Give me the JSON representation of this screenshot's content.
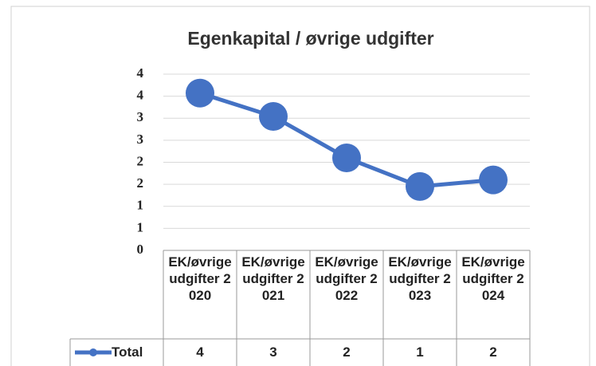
{
  "chart_data": {
    "type": "line",
    "title": "Egenkapital / øvrige udgifter",
    "categories": [
      "EK/øvrige udgifter 2020",
      "EK/øvrige udgifter 2021",
      "EK/øvrige udgifter 2022",
      "EK/øvrige udgifter 2023",
      "EK/øvrige udgifter 2024"
    ],
    "series": [
      {
        "name": "Total",
        "color": "#4472c4",
        "values": [
          3.57,
          3.04,
          2.1,
          1.45,
          1.6
        ],
        "value_labels": [
          "4",
          "3",
          "2",
          "1",
          "2"
        ]
      }
    ],
    "ylim": [
      0,
      4
    ],
    "yticks": [
      0,
      {
        "value": 0.5,
        "label": "1"
      },
      1,
      {
        "value": 1.5,
        "label": "2"
      },
      2,
      {
        "value": 2.5,
        "label": "3"
      },
      3,
      {
        "value": 3.5,
        "label": "4"
      },
      4
    ],
    "grid": true
  }
}
